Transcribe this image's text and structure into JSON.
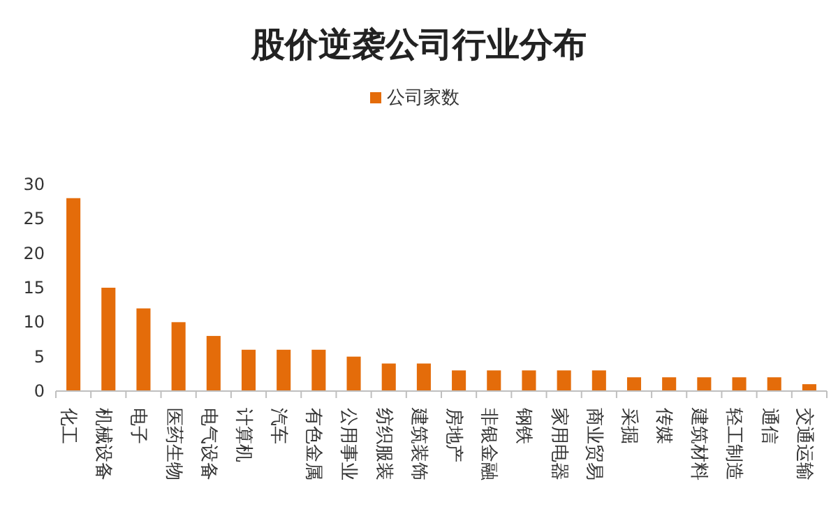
{
  "chart_data": {
    "type": "bar",
    "title": "股价逆袭公司行业分布",
    "categories": [
      "化工",
      "机械设备",
      "电子",
      "医药生物",
      "电气设备",
      "计算机",
      "汽车",
      "有色金属",
      "公用事业",
      "纺织服装",
      "建筑装饰",
      "房地产",
      "非银金融",
      "钢铁",
      "家用电器",
      "商业贸易",
      "采掘",
      "传媒",
      "建筑材料",
      "轻工制造",
      "通信",
      "交通运输"
    ],
    "series": [
      {
        "name": "公司家数",
        "color": "#e46c0a",
        "values": [
          28,
          15,
          12,
          10,
          8,
          6,
          6,
          6,
          5,
          4,
          4,
          3,
          3,
          3,
          3,
          3,
          2,
          2,
          2,
          2,
          2,
          1
        ]
      }
    ],
    "ylim": [
      0,
      30
    ],
    "yticks": [
      0,
      5,
      10,
      15,
      20,
      25,
      30
    ],
    "legend": "top",
    "grid": false
  }
}
